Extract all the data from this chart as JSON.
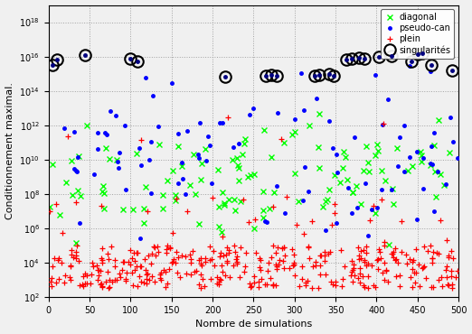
{
  "title": "",
  "xlabel": "Nombre de simulations",
  "ylabel": "Conditionnement maximal.",
  "xlim": [
    0,
    500
  ],
  "ylim_log": [
    2,
    19
  ],
  "legend_entries": [
    "diagonal",
    "pseudo-can",
    "plein",
    "singularités"
  ],
  "n_diag": 120,
  "n_pseudo": 100,
  "n_plein": 400,
  "seed": 7,
  "singularity_x": [
    5,
    10,
    45,
    100,
    108,
    215,
    265,
    272,
    278,
    325,
    330,
    342,
    348,
    363,
    370,
    378,
    385,
    403,
    418,
    443,
    450,
    456,
    467,
    492
  ],
  "singularity_y": [
    15.5,
    15.8,
    16.1,
    15.9,
    15.7,
    14.82,
    14.87,
    14.92,
    14.87,
    14.88,
    14.93,
    14.97,
    14.88,
    15.82,
    15.87,
    15.92,
    15.87,
    15.97,
    16.02,
    15.72,
    16.12,
    16.17,
    15.52,
    15.22
  ],
  "background_color": "#f0f0f0",
  "grid_color": "#999999"
}
